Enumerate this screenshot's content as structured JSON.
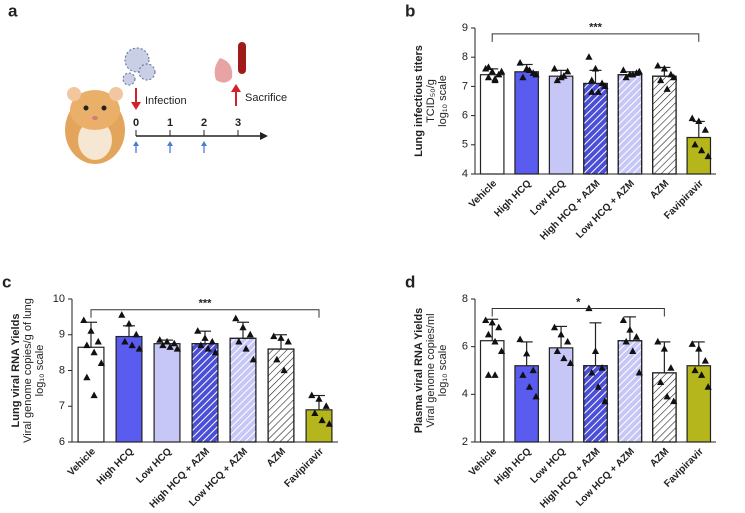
{
  "diagram": {
    "panel": "a",
    "infection": "Infection",
    "sacrifice": "Sacrifice",
    "timeline": [
      0,
      1,
      2,
      3
    ]
  },
  "chart_data": [
    {
      "type": "bar",
      "panel": "b",
      "y_label": [
        "Lung infectious titers",
        "TCID₅₀/g",
        "log₁₀ scale"
      ],
      "categories": [
        "Vehicle",
        "High HCQ",
        "Low HCQ",
        "High HCQ + AZM",
        "Low HCQ + AZM",
        "AZM",
        "Favipiravir"
      ],
      "values": [
        7.4,
        7.5,
        7.35,
        7.1,
        7.4,
        7.35,
        5.25
      ],
      "errors": [
        0.2,
        0.25,
        0.2,
        0.45,
        0.1,
        0.3,
        0.55
      ],
      "points": [
        [
          7.6,
          7.5,
          7.4,
          7.3,
          7.2,
          7.5,
          7.65,
          7.25
        ],
        [
          7.8,
          7.6,
          7.45,
          7.3,
          7.55,
          7.4
        ],
        [
          7.6,
          7.3,
          7.5,
          7.2,
          7.35
        ],
        [
          8.0,
          7.6,
          7.1,
          6.8,
          6.8,
          7.0,
          7.2
        ],
        [
          7.55,
          7.4,
          7.45,
          7.3,
          7.4,
          7.5
        ],
        [
          7.7,
          7.6,
          7.4,
          7.2,
          6.9,
          7.3
        ],
        [
          5.9,
          5.8,
          5.5,
          5.0,
          4.8,
          4.6
        ]
      ],
      "colors": [
        "#ffffff",
        "#5a5cf0",
        "#c6c7f6",
        "#4b4fd8",
        "#c6c7f6",
        "#ffffff",
        "#b5b51c"
      ],
      "hatch": [
        false,
        false,
        false,
        true,
        true,
        true,
        false
      ],
      "significance": {
        "from": "Vehicle",
        "to": "Favipiravir",
        "y": 8.8,
        "label": "***"
      },
      "ylim": [
        4,
        9
      ],
      "yticks": [
        4,
        5,
        6,
        7,
        8,
        9
      ]
    },
    {
      "type": "bar",
      "panel": "c",
      "y_label": [
        "Lung viral RNA Yields",
        "Viral genome copies/g of lung",
        "log₁₀ scale"
      ],
      "categories": [
        "Vehicle",
        "High HCQ",
        "Low HCQ",
        "High HCQ + AZM",
        "Low HCQ + AZM",
        "AZM",
        "Favipiravir"
      ],
      "values": [
        8.65,
        8.95,
        8.75,
        8.75,
        8.9,
        8.6,
        6.9
      ],
      "errors": [
        0.7,
        0.3,
        0.1,
        0.35,
        0.45,
        0.4,
        0.4
      ],
      "points": [
        [
          9.4,
          9.1,
          8.8,
          8.7,
          8.5,
          8.2,
          7.8,
          7.3
        ],
        [
          9.55,
          9.3,
          9.0,
          8.8,
          8.7,
          8.6
        ],
        [
          8.85,
          8.8,
          8.75,
          8.7,
          8.65,
          8.6
        ],
        [
          9.1,
          8.9,
          8.8,
          8.7,
          8.6,
          8.5
        ],
        [
          9.45,
          9.2,
          9.0,
          8.8,
          8.6,
          8.3
        ],
        [
          8.95,
          8.9,
          8.8,
          8.3,
          8.0
        ],
        [
          7.3,
          7.2,
          7.0,
          6.8,
          6.6,
          6.5
        ]
      ],
      "colors": [
        "#ffffff",
        "#5a5cf0",
        "#c6c7f6",
        "#4b4fd8",
        "#c6c7f6",
        "#ffffff",
        "#b5b51c"
      ],
      "hatch": [
        false,
        false,
        false,
        true,
        true,
        true,
        false
      ],
      "significance": {
        "from": "Vehicle",
        "to": "Favipiravir",
        "y": 9.7,
        "label": "***"
      },
      "ylim": [
        6,
        10
      ],
      "yticks": [
        6,
        7,
        8,
        9,
        10
      ]
    },
    {
      "type": "bar",
      "panel": "d",
      "y_label": [
        "Plasma viral RNA Yields",
        "Viral genome copies/ml",
        "log₁₀ scale"
      ],
      "categories": [
        "Vehicle",
        "High HCQ",
        "Low HCQ",
        "High HCQ + AZM",
        "Low HCQ + AZM",
        "AZM",
        "Favipiravir"
      ],
      "values": [
        6.25,
        5.2,
        5.95,
        5.2,
        6.25,
        4.9,
        5.2
      ],
      "errors": [
        0.9,
        1.0,
        0.9,
        1.8,
        1.0,
        1.3,
        1.0
      ],
      "points": [
        [
          7.1,
          7.0,
          6.8,
          6.5,
          6.2,
          5.8,
          4.8,
          4.8
        ],
        [
          6.3,
          5.7,
          5.0,
          4.8,
          4.3,
          3.9
        ],
        [
          6.8,
          6.5,
          6.2,
          5.8,
          5.5,
          5.3
        ],
        [
          7.6,
          5.8,
          5.1,
          4.9,
          4.3,
          3.7
        ],
        [
          7.1,
          6.7,
          6.4,
          6.2,
          5.8,
          4.9
        ],
        [
          6.2,
          5.9,
          5.1,
          4.5,
          3.9,
          3.7
        ],
        [
          6.1,
          5.9,
          5.4,
          5.0,
          4.8,
          4.3
        ]
      ],
      "colors": [
        "#ffffff",
        "#5a5cf0",
        "#c6c7f6",
        "#4b4fd8",
        "#c6c7f6",
        "#ffffff",
        "#b5b51c"
      ],
      "hatch": [
        false,
        false,
        false,
        true,
        true,
        true,
        false
      ],
      "significance": {
        "from": "Vehicle",
        "to": "AZM",
        "y": 7.6,
        "label": "*"
      },
      "ylim": [
        2,
        8
      ],
      "yticks": [
        2,
        4,
        6,
        8
      ]
    }
  ]
}
